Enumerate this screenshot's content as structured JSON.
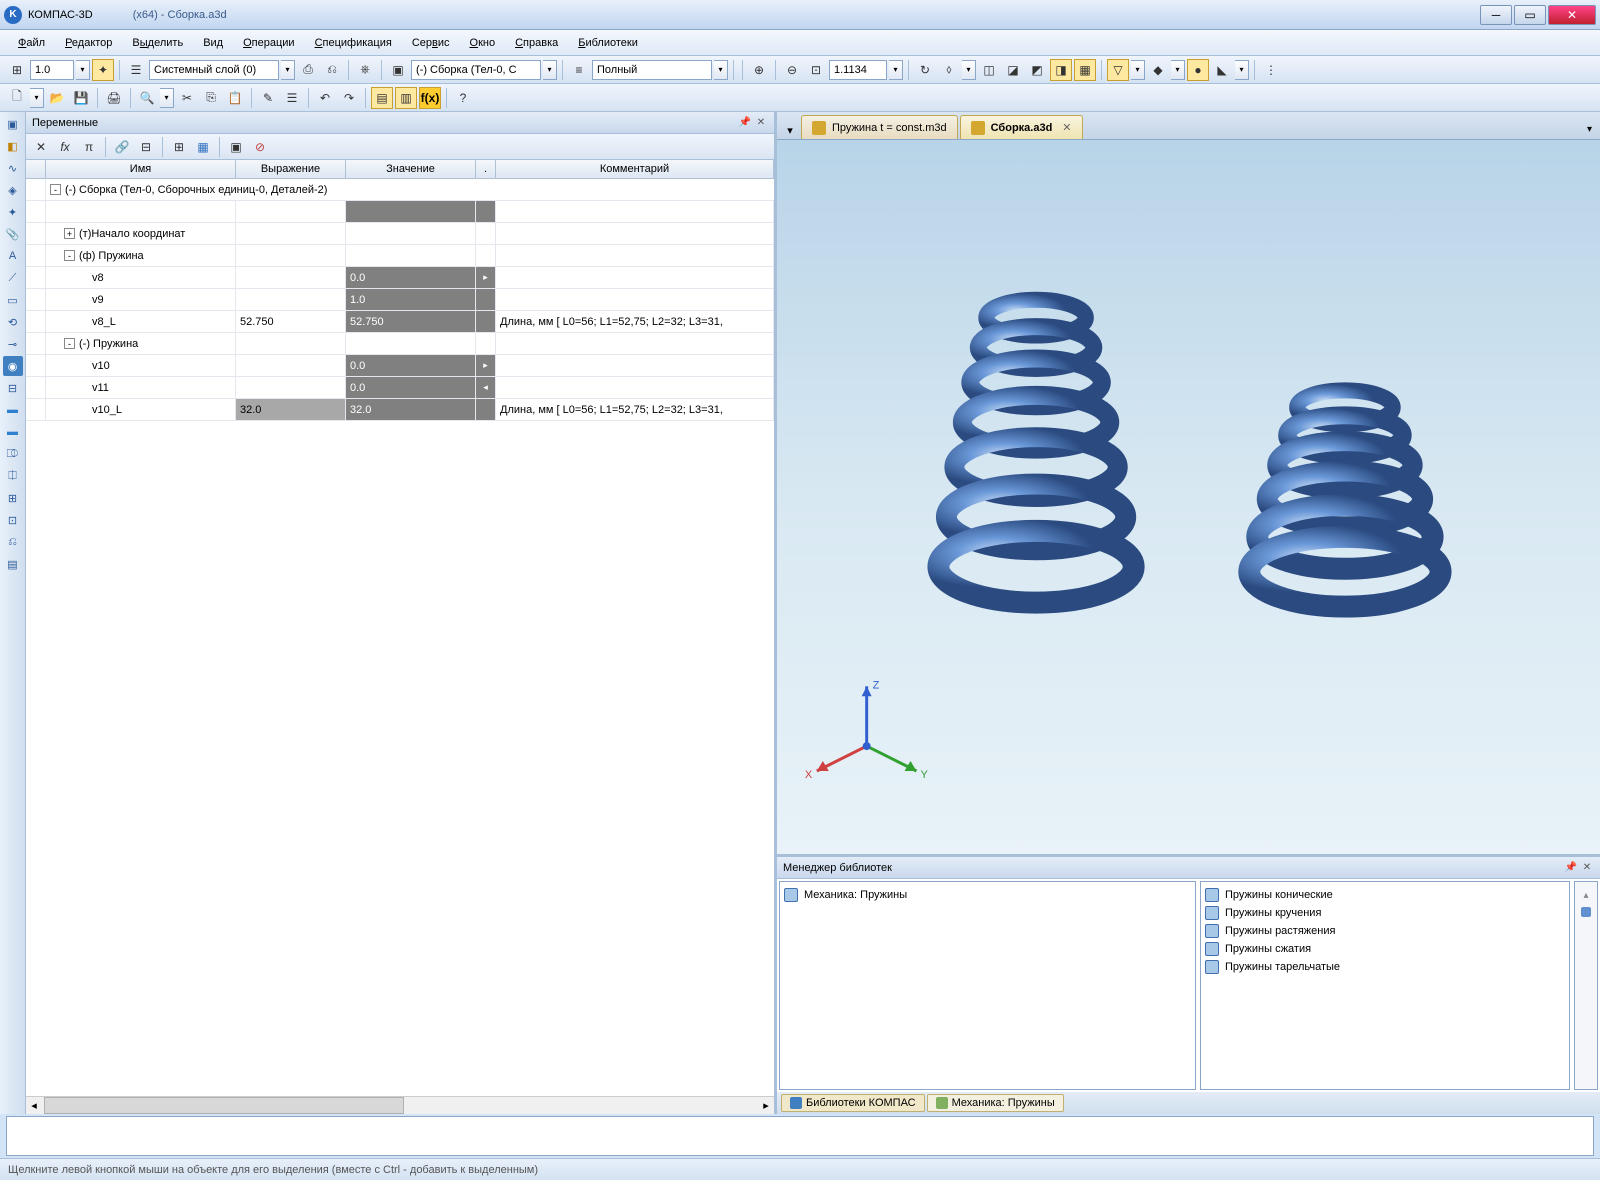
{
  "window": {
    "app": "КОМПАС-3D",
    "arch": "(x64) - Сборка.a3d"
  },
  "menu": [
    "Файл",
    "Редактор",
    "Выделить",
    "Вид",
    "Операции",
    "Спецификация",
    "Сервис",
    "Окно",
    "Справка",
    "Библиотеки"
  ],
  "menu_underline_idx": [
    0,
    0,
    1,
    2,
    0,
    0,
    3,
    0,
    0,
    0
  ],
  "tb1": {
    "scale": "1.0",
    "layer": "Системный слой (0)",
    "assembly": "(-) Сборка (Тел-0, С",
    "mode": "Полный",
    "zoom": "1.1134"
  },
  "panels": {
    "vars": "Переменные",
    "lib": "Менеджер библиотек"
  },
  "var_cols": {
    "name": "Имя",
    "expr": "Выражение",
    "val": "Значение",
    "comm": "Комментарий"
  },
  "var_rows": [
    {
      "type": "node",
      "tog": "-",
      "indent": 0,
      "name": "(-) Сборка (Тел-0, Сборочных единиц-0, Деталей-2)",
      "span": true
    },
    {
      "type": "blank",
      "indent": 0
    },
    {
      "type": "node",
      "tog": "+",
      "indent": 1,
      "name": "(т)Начало координат"
    },
    {
      "type": "node",
      "tog": "-",
      "indent": 1,
      "name": "(ф) Пружина"
    },
    {
      "type": "var",
      "indent": 2,
      "name": "v8",
      "expr": "",
      "val": "0.0",
      "sfx": "▸",
      "comm": ""
    },
    {
      "type": "var",
      "indent": 2,
      "name": "v9",
      "expr": "",
      "val": "1.0",
      "sfx": "",
      "comm": ""
    },
    {
      "type": "var",
      "indent": 2,
      "name": "v8_L",
      "expr": "52.750",
      "val": "52.750",
      "sfx": "",
      "comm": "Длина, мм [ L0=56; L1=52,75; L2=32; L3=31,"
    },
    {
      "type": "node",
      "tog": "-",
      "indent": 1,
      "name": "(-) Пружина"
    },
    {
      "type": "var",
      "indent": 2,
      "name": "v10",
      "expr": "",
      "val": "0.0",
      "sfx": "▸",
      "comm": ""
    },
    {
      "type": "var",
      "indent": 2,
      "name": "v11",
      "expr": "",
      "val": "0.0",
      "sfx": "◂",
      "comm": ""
    },
    {
      "type": "var",
      "indent": 2,
      "name": "v10_L",
      "expr": "32.0",
      "val": "32.0",
      "sfx": "",
      "comm": "Длина, мм [ L0=56; L1=52,75; L2=32; L3=31,",
      "sel": true
    }
  ],
  "tabs": [
    {
      "label": "Пружина t = const.m3d",
      "active": false
    },
    {
      "label": "Сборка.a3d",
      "active": true
    }
  ],
  "axis": {
    "x": "X",
    "y": "Y",
    "z": "Z",
    "colors": {
      "x": "#d04040",
      "y": "#30a030",
      "z": "#3060d0"
    }
  },
  "lib": {
    "left_title": "Механика: Пружины",
    "right_items": [
      "Пружины конические",
      "Пружины кручения",
      "Пружины растяжения",
      "Пружины сжатия",
      "Пружины тарельчатые"
    ],
    "tabs": [
      "Библиотеки КОМПАС",
      "Механика: Пружины"
    ]
  },
  "status": "Щелкните левой кнопкой мыши на объекте для его выделения (вместе с Ctrl - добавить к выделенным)",
  "colors": {
    "spring": "#5a88d0",
    "spring_hl": "#9ab8e8",
    "spring_dk": "#2a4a80"
  }
}
